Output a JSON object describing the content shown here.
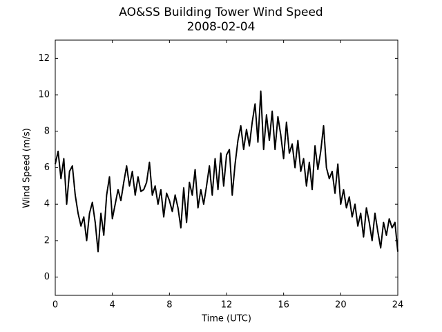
{
  "chart_data": {
    "type": "line",
    "title": "AO&SS Building Tower Wind Speed",
    "subtitle": "2008-02-04",
    "x_label": "Time (UTC)",
    "y_label": "Wind Speed (m/s)",
    "color": "#000000",
    "xlim": [
      0,
      24
    ],
    "xticks": [
      0,
      4,
      8,
      12,
      16,
      20,
      24
    ],
    "ylim": [
      -1,
      13
    ],
    "yticks": [
      0,
      2,
      4,
      6,
      8,
      10,
      12
    ],
    "x": [
      0.0,
      0.2,
      0.4,
      0.6,
      0.8,
      1.0,
      1.2,
      1.4,
      1.6,
      1.8,
      2.0,
      2.2,
      2.4,
      2.6,
      2.8,
      3.0,
      3.2,
      3.4,
      3.6,
      3.8,
      4.0,
      4.2,
      4.4,
      4.6,
      4.8,
      5.0,
      5.2,
      5.4,
      5.6,
      5.8,
      6.0,
      6.2,
      6.4,
      6.6,
      6.8,
      7.0,
      7.2,
      7.4,
      7.6,
      7.8,
      8.0,
      8.2,
      8.4,
      8.6,
      8.8,
      9.0,
      9.2,
      9.4,
      9.6,
      9.8,
      10.0,
      10.2,
      10.4,
      10.6,
      10.8,
      11.0,
      11.2,
      11.4,
      11.6,
      11.8,
      12.0,
      12.2,
      12.4,
      12.6,
      12.8,
      13.0,
      13.2,
      13.4,
      13.6,
      13.8,
      14.0,
      14.2,
      14.4,
      14.6,
      14.8,
      15.0,
      15.2,
      15.4,
      15.6,
      15.8,
      16.0,
      16.2,
      16.4,
      16.6,
      16.8,
      17.0,
      17.2,
      17.4,
      17.6,
      17.8,
      18.0,
      18.2,
      18.4,
      18.6,
      18.8,
      19.0,
      19.2,
      19.4,
      19.6,
      19.8,
      20.0,
      20.2,
      20.4,
      20.6,
      20.8,
      21.0,
      21.2,
      21.4,
      21.6,
      21.8,
      22.0,
      22.2,
      22.4,
      22.6,
      22.8,
      23.0,
      23.2,
      23.4,
      23.6,
      23.8,
      24.0
    ],
    "values": [
      6.2,
      6.9,
      5.4,
      6.5,
      4.0,
      5.8,
      6.1,
      4.5,
      3.5,
      2.8,
      3.3,
      2.0,
      3.5,
      4.1,
      3.0,
      1.4,
      3.5,
      2.3,
      4.5,
      5.5,
      3.2,
      4.0,
      4.8,
      4.2,
      5.2,
      6.1,
      5.0,
      5.8,
      4.5,
      5.5,
      4.7,
      4.8,
      5.2,
      6.3,
      4.5,
      5.0,
      4.0,
      4.8,
      3.3,
      4.6,
      4.2,
      3.6,
      4.5,
      3.8,
      2.7,
      4.9,
      3.0,
      5.2,
      4.5,
      5.9,
      3.8,
      4.8,
      4.0,
      5.0,
      6.1,
      4.5,
      6.5,
      4.8,
      6.8,
      5.0,
      6.7,
      7.0,
      4.5,
      6.2,
      7.5,
      8.3,
      7.0,
      8.1,
      7.2,
      8.5,
      9.5,
      7.4,
      10.2,
      7.0,
      8.9,
      7.5,
      9.1,
      7.0,
      8.8,
      7.8,
      6.5,
      8.5,
      6.8,
      7.3,
      6.0,
      7.5,
      5.8,
      6.5,
      5.0,
      6.3,
      4.8,
      7.2,
      5.9,
      6.9,
      8.3,
      6.0,
      5.4,
      5.8,
      4.6,
      6.2,
      4.0,
      4.8,
      3.8,
      4.4,
      3.3,
      4.0,
      2.8,
      3.5,
      2.2,
      3.8,
      3.0,
      2.0,
      3.5,
      2.5,
      1.6,
      3.0,
      2.3,
      3.2,
      2.7,
      3.0,
      1.4
    ]
  }
}
